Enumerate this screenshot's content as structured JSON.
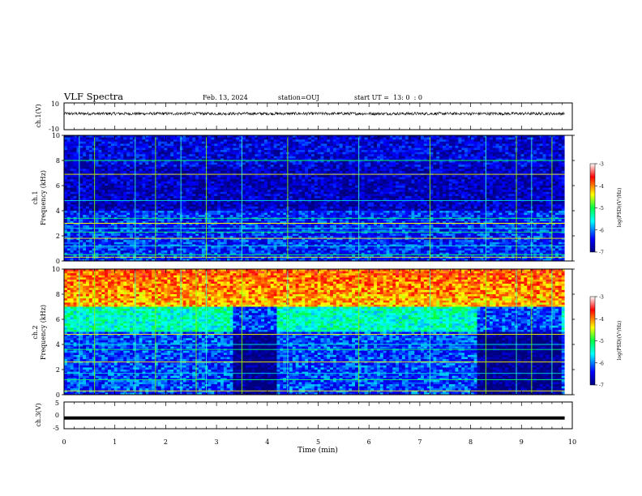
{
  "header": {
    "title": "VLF Spectra",
    "date": "Feb. 13, 2024",
    "station": "station=OUJ",
    "start": "start UT =  13: 0  : 0"
  },
  "chart_data": [
    {
      "type": "line",
      "panel": "ch1-waveform",
      "ylabel": "ch.1(V)",
      "ylim": [
        -10,
        10
      ],
      "yticks": [
        "10",
        "-10"
      ],
      "xlim": [
        0,
        10
      ],
      "series": [
        {
          "values_summary": "noise centered near 2 V, amplitude about ±1 V"
        }
      ]
    },
    {
      "type": "heatmap",
      "panel": "ch1-spectrogram",
      "ylabel": "ch.1\nFrequency (kHz)",
      "ylim": [
        0,
        10
      ],
      "yticks": [
        "0",
        "2",
        "4",
        "6",
        "8",
        "10"
      ],
      "xlim": [
        0,
        10
      ],
      "colorbar": {
        "label": "log(PSD)(V²/Hz)",
        "range": [
          -7,
          -3
        ],
        "ticks": [
          "-3",
          "-4",
          "-5",
          "-6",
          "-7"
        ]
      },
      "levels": {
        "low_freq_band_0_4kHz": -6.3,
        "upper_band_4_10kHz": -6.7
      },
      "horizontal_lines_kHz": [
        0.3,
        0.5,
        1.2,
        1.8,
        2.3,
        2.6,
        3.0,
        3.4,
        4.8,
        6.9,
        8.0
      ],
      "vertical_spikes_min": [
        0.3,
        0.6,
        1.4,
        1.8,
        2.3,
        2.8,
        3.5,
        4.4,
        5.8,
        7.2,
        8.3,
        8.9,
        9.2,
        9.6
      ]
    },
    {
      "type": "heatmap",
      "panel": "ch2-spectrogram",
      "ylabel": "ch.2\nFrequency (kHz)",
      "ylim": [
        0,
        10
      ],
      "yticks": [
        "0",
        "2",
        "4",
        "6",
        "8",
        "10"
      ],
      "xlim": [
        0,
        10
      ],
      "colorbar": {
        "label": "log(PSD)(V²/Hz)",
        "range": [
          -7,
          -3
        ],
        "ticks": [
          "-3",
          "-4",
          "-5",
          "-6",
          "-7"
        ]
      },
      "levels": {
        "above_7kHz": -4.2,
        "from_5_to_7kHz": -5.4,
        "below_5kHz": -6.2
      },
      "quiet_intervals_min": [
        [
          3.3,
          4.2
        ],
        [
          8.1,
          9.8
        ]
      ],
      "horizontal_lines_kHz": [
        0.3,
        1.2,
        1.7,
        2.6,
        3.6,
        4.0,
        4.8
      ],
      "vertical_spikes_min": [
        0.3,
        0.6,
        1.4,
        1.8,
        2.3,
        2.6,
        2.8,
        3.5,
        4.4,
        5.8,
        7.2,
        8.3,
        8.9,
        9.2,
        9.6
      ]
    },
    {
      "type": "line",
      "panel": "ch3-waveform",
      "ylabel": "ch.3(V)",
      "ylim": [
        -5,
        5
      ],
      "yticks": [
        "5",
        "0",
        "-5"
      ],
      "xlim": [
        0,
        10
      ],
      "series": [
        {
          "values_summary": "constant near -1 V"
        }
      ]
    }
  ],
  "xaxis": {
    "label": "Time (min)",
    "ticks": [
      "0",
      "1",
      "2",
      "3",
      "4",
      "5",
      "6",
      "7",
      "8",
      "9",
      "10"
    ]
  },
  "colors": {
    "spectro_low": "#00007f",
    "spectro_mid": "#00ffff",
    "spectro_high": "#ff0000"
  }
}
